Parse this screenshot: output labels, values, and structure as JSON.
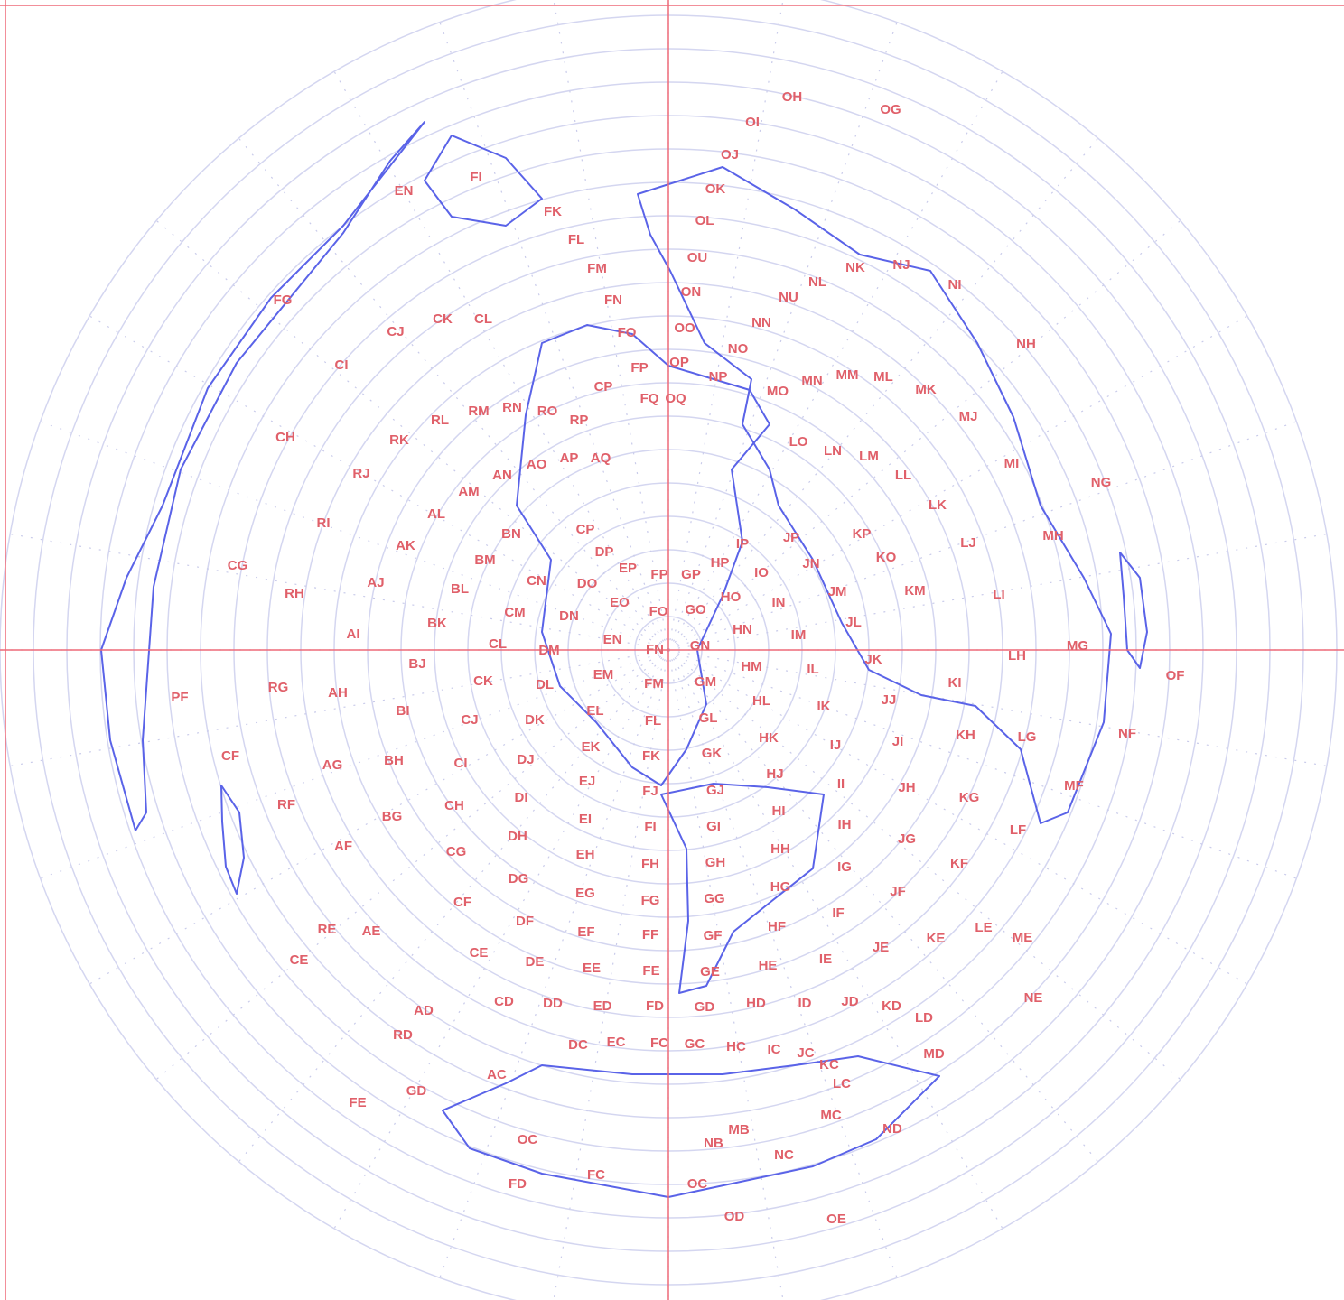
{
  "map": {
    "locators": [
      "OH",
      "OG",
      "OI",
      "OJ",
      "OK",
      "OL",
      "OU",
      "ON",
      "OO",
      "OP",
      "FI",
      "EN",
      "FK",
      "FL",
      "FM",
      "FN",
      "FO",
      "FP",
      "FG",
      "CJ",
      "CK",
      "CL",
      "CI",
      "CH",
      "CG",
      "RL",
      "RM",
      "RN",
      "RO",
      "RP",
      "RK",
      "RJ",
      "RI",
      "RH",
      "AI",
      "AJ",
      "AK",
      "AL",
      "AM",
      "AN",
      "AO",
      "AP",
      "AQ",
      "CP",
      "FQ",
      "OQ",
      "NP",
      "NO",
      "NN",
      "NU",
      "NL",
      "NK",
      "NJ",
      "NI",
      "NH",
      "NG",
      "NF",
      "NE",
      "ND",
      "NC",
      "NB",
      "MO",
      "MN",
      "MM",
      "ML",
      "MK",
      "MJ",
      "MI",
      "MH",
      "MG",
      "MF",
      "ME",
      "MD",
      "MC",
      "MB",
      "OF",
      "OE",
      "OD",
      "OC",
      "FC",
      "FD",
      "FE",
      "GD",
      "OC",
      "BN",
      "BM",
      "BL",
      "BK",
      "BJ",
      "BI",
      "BH",
      "BG",
      "AH",
      "AG",
      "AF",
      "AE",
      "AD",
      "AC",
      "RG",
      "RF",
      "RE",
      "RD",
      "PF",
      "CF",
      "CE",
      "CP",
      "CN",
      "CM",
      "CL",
      "CK",
      "CJ",
      "CI",
      "CH",
      "CG",
      "CF",
      "CE",
      "CD",
      "DP",
      "DO",
      "DN",
      "DM",
      "DL",
      "DK",
      "DJ",
      "DI",
      "DH",
      "DG",
      "DF",
      "DE",
      "DD",
      "DC",
      "EP",
      "EO",
      "EN",
      "EM",
      "EL",
      "EK",
      "EJ",
      "EI",
      "EH",
      "EG",
      "EF",
      "EE",
      "ED",
      "EC",
      "FP",
      "FO",
      "FN",
      "FM",
      "FL",
      "FK",
      "FJ",
      "FI",
      "FH",
      "FG",
      "FF",
      "FE",
      "FD",
      "FC",
      "GP",
      "GO",
      "GN",
      "GM",
      "GL",
      "GK",
      "GJ",
      "GI",
      "GH",
      "GG",
      "GF",
      "GE",
      "GD",
      "GC",
      "HP",
      "HO",
      "HN",
      "HM",
      "HL",
      "HK",
      "HJ",
      "HI",
      "HH",
      "HG",
      "HF",
      "HE",
      "HD",
      "HC",
      "IP",
      "IO",
      "IN",
      "IM",
      "IL",
      "IK",
      "IJ",
      "II",
      "IH",
      "IG",
      "IF",
      "IE",
      "ID",
      "IC",
      "JP",
      "JN",
      "JM",
      "JL",
      "JK",
      "JJ",
      "JI",
      "JH",
      "JG",
      "JF",
      "JE",
      "JD",
      "JC",
      "KP",
      "KO",
      "KM",
      "KI",
      "KH",
      "KG",
      "KF",
      "KE",
      "KD",
      "KC",
      "LK",
      "LJ",
      "LI",
      "LH",
      "LG",
      "LF",
      "LE",
      "LD",
      "LC",
      "LO",
      "LN",
      "LM",
      "LL"
    ]
  }
}
